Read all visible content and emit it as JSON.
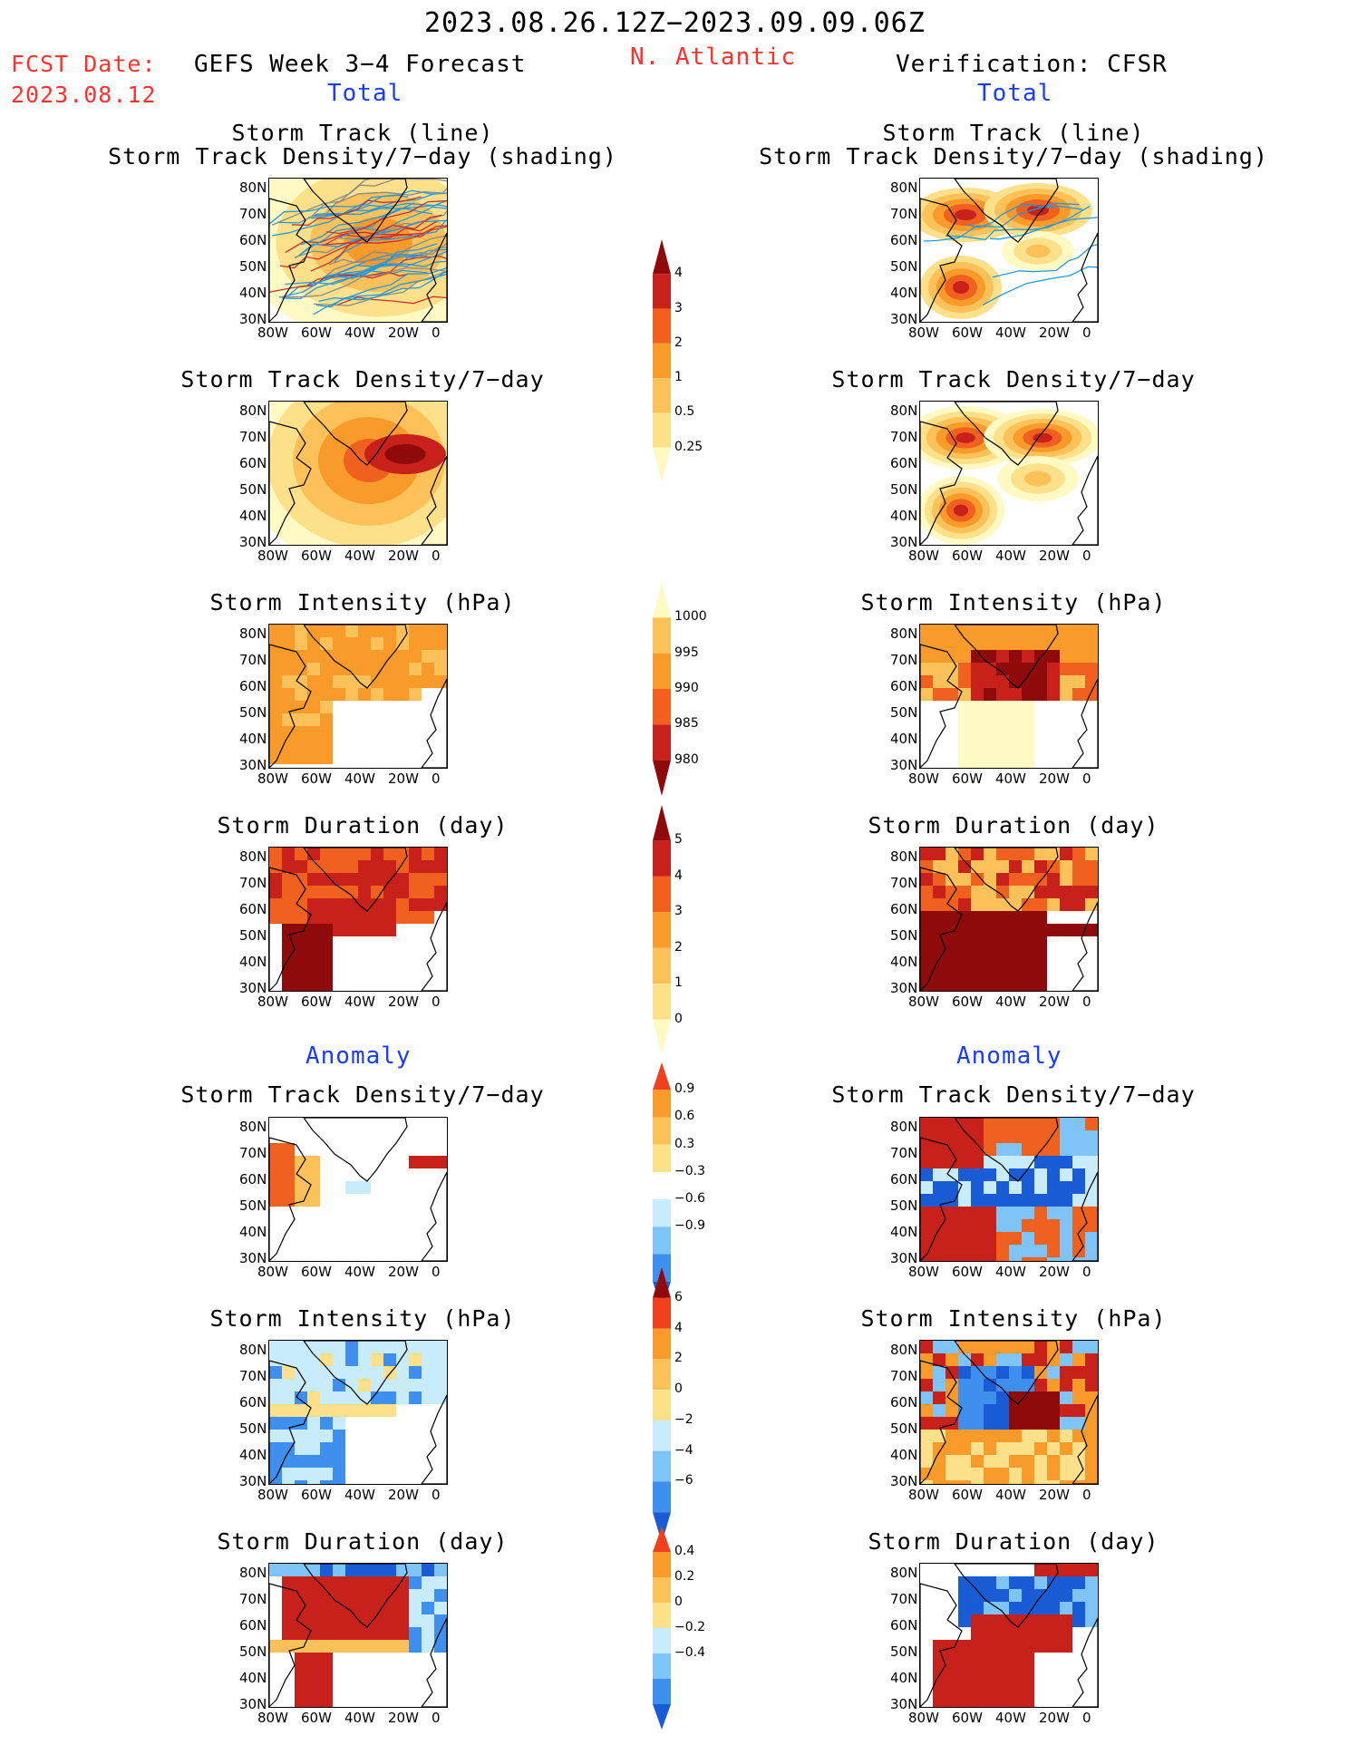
{
  "header": {
    "period": "2023.08.26.12Z−2023.09.09.06Z",
    "fcst_label": "FCST Date:",
    "fcst_date": "2023.08.12",
    "left_title": "GEFS Week 3−4 Forecast",
    "region": "N. Atlantic",
    "right_title": "Verification: CFSR",
    "total_left": "Total",
    "total_right": "Total",
    "anomaly_left": "Anomaly",
    "anomaly_right": "Anomaly"
  },
  "panel_titles": {
    "track_line": "Storm Track (line)",
    "track_shading": "Storm Track Density/7−day (shading)",
    "density": "Storm Track Density/7−day",
    "intensity": "Storm Intensity (hPa)",
    "duration": "Storm Duration (day)"
  },
  "axes": {
    "lat_ticks": [
      "80N",
      "70N",
      "60N",
      "50N",
      "40N",
      "30N"
    ],
    "lon_ticks": [
      "80W",
      "60W",
      "40W",
      "20W",
      "0"
    ]
  },
  "colors": {
    "density_scale": [
      "#fff9c4",
      "#fde08a",
      "#fcc259",
      "#f89b2b",
      "#f0601e",
      "#c8201a",
      "#8f0a0a"
    ],
    "blue_scale": [
      "#1a5bd6",
      "#3f8fee",
      "#7fc4f6",
      "#c8ecfb"
    ],
    "track_line": "#1e9be0",
    "track_line_dark": "#cc3030"
  },
  "chart_data": [
    {
      "type": "heatmap",
      "id": "colorbar_density",
      "labels": [
        "4",
        "3",
        "2",
        "1",
        "0.5",
        "0.25"
      ]
    },
    {
      "type": "heatmap",
      "id": "colorbar_intensity",
      "labels": [
        "1000",
        "995",
        "990",
        "985",
        "980"
      ]
    },
    {
      "type": "heatmap",
      "id": "colorbar_duration",
      "labels": [
        "5",
        "4",
        "3",
        "2",
        "1",
        "0"
      ]
    },
    {
      "type": "heatmap",
      "id": "colorbar_anom_density",
      "labels": [
        "0.9",
        "0.6",
        "0.3",
        "−0.3",
        "−0.6",
        "−0.9"
      ]
    },
    {
      "type": "heatmap",
      "id": "colorbar_anom_intensity",
      "labels": [
        "6",
        "4",
        "2",
        "0",
        "−2",
        "−4",
        "−6"
      ]
    },
    {
      "type": "heatmap",
      "id": "colorbar_anom_duration",
      "labels": [
        "0.4",
        "0.2",
        "0",
        "−0.2",
        "−0.4"
      ]
    }
  ]
}
